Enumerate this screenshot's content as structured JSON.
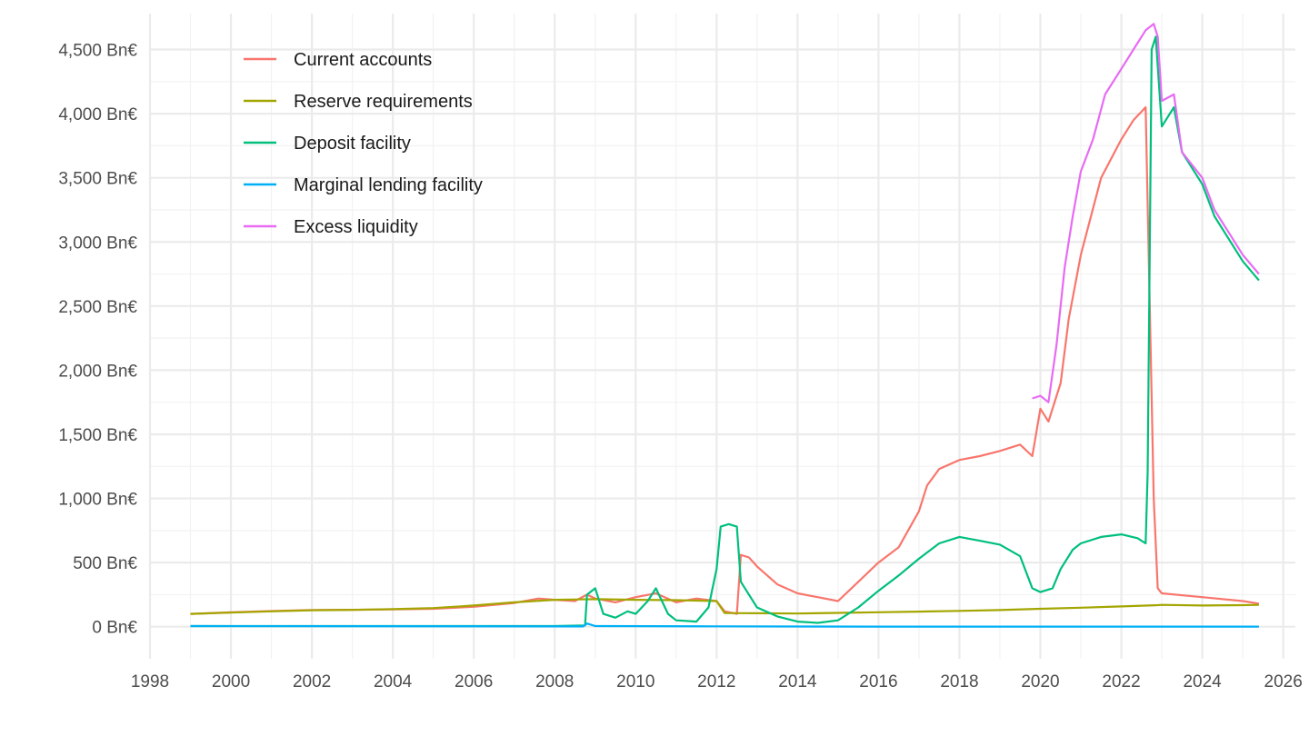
{
  "chart_data": {
    "type": "line",
    "title": "",
    "xlabel": "",
    "ylabel": "",
    "x_unit": "year",
    "y_unit": "Bn€",
    "xlim": [
      1998.0,
      2026.3
    ],
    "ylim": [
      -250,
      4780
    ],
    "x_ticks": [
      1998,
      2000,
      2002,
      2004,
      2006,
      2008,
      2010,
      2012,
      2014,
      2016,
      2018,
      2020,
      2022,
      2024,
      2026
    ],
    "x_tick_labels": [
      "1998",
      "2000",
      "2002",
      "2004",
      "2006",
      "2008",
      "2010",
      "2012",
      "2014",
      "2016",
      "2018",
      "2020",
      "2022",
      "2024",
      "2026"
    ],
    "y_ticks": [
      0,
      500,
      1000,
      1500,
      2000,
      2500,
      3000,
      3500,
      4000,
      4500
    ],
    "y_tick_labels": [
      "0 Bn€",
      "500 Bn€",
      "1,000 Bn€",
      "1,500 Bn€",
      "2,000 Bn€",
      "2,500 Bn€",
      "3,000 Bn€",
      "3,500 Bn€",
      "4,000 Bn€",
      "4,500 Bn€"
    ],
    "grid": true,
    "legend_position": "top-left",
    "series": [
      {
        "name": "Current accounts",
        "color": "#F8766D",
        "points": [
          [
            1999.0,
            100
          ],
          [
            2000.0,
            112
          ],
          [
            2001.0,
            122
          ],
          [
            2002.0,
            130
          ],
          [
            2003.0,
            132
          ],
          [
            2004.0,
            135
          ],
          [
            2005.0,
            140
          ],
          [
            2006.0,
            155
          ],
          [
            2007.0,
            185
          ],
          [
            2007.6,
            220
          ],
          [
            2008.0,
            210
          ],
          [
            2008.5,
            200
          ],
          [
            2008.8,
            250
          ],
          [
            2009.0,
            220
          ],
          [
            2009.5,
            190
          ],
          [
            2010.0,
            230
          ],
          [
            2010.5,
            260
          ],
          [
            2011.0,
            190
          ],
          [
            2011.5,
            220
          ],
          [
            2012.0,
            200
          ],
          [
            2012.2,
            120
          ],
          [
            2012.5,
            100
          ],
          [
            2012.6,
            560
          ],
          [
            2012.8,
            540
          ],
          [
            2013.0,
            470
          ],
          [
            2013.5,
            330
          ],
          [
            2014.0,
            260
          ],
          [
            2014.5,
            230
          ],
          [
            2015.0,
            200
          ],
          [
            2015.5,
            350
          ],
          [
            2016.0,
            500
          ],
          [
            2016.5,
            620
          ],
          [
            2017.0,
            900
          ],
          [
            2017.2,
            1100
          ],
          [
            2017.5,
            1230
          ],
          [
            2018.0,
            1300
          ],
          [
            2018.5,
            1330
          ],
          [
            2019.0,
            1370
          ],
          [
            2019.5,
            1420
          ],
          [
            2019.8,
            1330
          ],
          [
            2020.0,
            1700
          ],
          [
            2020.2,
            1600
          ],
          [
            2020.5,
            1900
          ],
          [
            2020.7,
            2400
          ],
          [
            2021.0,
            2900
          ],
          [
            2021.5,
            3500
          ],
          [
            2022.0,
            3800
          ],
          [
            2022.3,
            3950
          ],
          [
            2022.6,
            4050
          ],
          [
            2022.8,
            1000
          ],
          [
            2022.9,
            300
          ],
          [
            2023.0,
            260
          ],
          [
            2024.0,
            230
          ],
          [
            2025.0,
            200
          ],
          [
            2025.4,
            180
          ]
        ]
      },
      {
        "name": "Reserve requirements",
        "color": "#A3A500",
        "points": [
          [
            1999.0,
            100
          ],
          [
            2000.0,
            110
          ],
          [
            2001.0,
            120
          ],
          [
            2002.0,
            128
          ],
          [
            2003.0,
            131
          ],
          [
            2004.0,
            137
          ],
          [
            2005.0,
            145
          ],
          [
            2006.0,
            165
          ],
          [
            2007.0,
            190
          ],
          [
            2008.0,
            210
          ],
          [
            2009.0,
            215
          ],
          [
            2010.0,
            210
          ],
          [
            2011.0,
            207
          ],
          [
            2012.0,
            200
          ],
          [
            2012.2,
            106
          ],
          [
            2013.0,
            105
          ],
          [
            2014.0,
            103
          ],
          [
            2015.0,
            108
          ],
          [
            2016.0,
            113
          ],
          [
            2017.0,
            118
          ],
          [
            2018.0,
            123
          ],
          [
            2019.0,
            130
          ],
          [
            2020.0,
            140
          ],
          [
            2021.0,
            148
          ],
          [
            2022.0,
            158
          ],
          [
            2022.9,
            168
          ],
          [
            2023.0,
            170
          ],
          [
            2024.0,
            165
          ],
          [
            2025.0,
            168
          ],
          [
            2025.4,
            170
          ]
        ]
      },
      {
        "name": "Deposit facility",
        "color": "#00BF7D",
        "points": [
          [
            1999.0,
            5
          ],
          [
            2008.0,
            5
          ],
          [
            2008.75,
            10
          ],
          [
            2008.8,
            250
          ],
          [
            2009.0,
            300
          ],
          [
            2009.2,
            100
          ],
          [
            2009.5,
            70
          ],
          [
            2009.8,
            120
          ],
          [
            2010.0,
            100
          ],
          [
            2010.3,
            200
          ],
          [
            2010.5,
            300
          ],
          [
            2010.8,
            100
          ],
          [
            2011.0,
            50
          ],
          [
            2011.5,
            40
          ],
          [
            2011.8,
            150
          ],
          [
            2012.0,
            450
          ],
          [
            2012.1,
            780
          ],
          [
            2012.3,
            800
          ],
          [
            2012.5,
            780
          ],
          [
            2012.6,
            350
          ],
          [
            2012.8,
            250
          ],
          [
            2013.0,
            150
          ],
          [
            2013.5,
            80
          ],
          [
            2014.0,
            40
          ],
          [
            2014.5,
            30
          ],
          [
            2015.0,
            50
          ],
          [
            2015.5,
            150
          ],
          [
            2016.0,
            280
          ],
          [
            2016.5,
            400
          ],
          [
            2017.0,
            530
          ],
          [
            2017.5,
            650
          ],
          [
            2018.0,
            700
          ],
          [
            2018.5,
            670
          ],
          [
            2019.0,
            640
          ],
          [
            2019.5,
            550
          ],
          [
            2019.8,
            300
          ],
          [
            2020.0,
            270
          ],
          [
            2020.3,
            300
          ],
          [
            2020.5,
            450
          ],
          [
            2020.8,
            600
          ],
          [
            2021.0,
            650
          ],
          [
            2021.5,
            700
          ],
          [
            2022.0,
            720
          ],
          [
            2022.4,
            690
          ],
          [
            2022.6,
            650
          ],
          [
            2022.65,
            1200
          ],
          [
            2022.75,
            4500
          ],
          [
            2022.85,
            4600
          ],
          [
            2023.0,
            3900
          ],
          [
            2023.3,
            4050
          ],
          [
            2023.5,
            3700
          ],
          [
            2024.0,
            3450
          ],
          [
            2024.3,
            3200
          ],
          [
            2024.7,
            3000
          ],
          [
            2025.0,
            2850
          ],
          [
            2025.4,
            2700
          ]
        ]
      },
      {
        "name": "Marginal lending facility",
        "color": "#00B0F6",
        "points": [
          [
            1999.0,
            5
          ],
          [
            2008.7,
            2
          ],
          [
            2008.8,
            25
          ],
          [
            2009.0,
            5
          ],
          [
            2012.0,
            3
          ],
          [
            2016.0,
            1
          ],
          [
            2022.0,
            1
          ],
          [
            2025.4,
            1
          ]
        ]
      },
      {
        "name": "Excess liquidity",
        "color": "#E76BF3",
        "points": [
          [
            2019.8,
            1780
          ],
          [
            2020.0,
            1800
          ],
          [
            2020.2,
            1750
          ],
          [
            2020.4,
            2200
          ],
          [
            2020.6,
            2800
          ],
          [
            2020.8,
            3200
          ],
          [
            2021.0,
            3550
          ],
          [
            2021.3,
            3800
          ],
          [
            2021.6,
            4150
          ],
          [
            2022.0,
            4350
          ],
          [
            2022.3,
            4500
          ],
          [
            2022.6,
            4650
          ],
          [
            2022.8,
            4700
          ],
          [
            2022.9,
            4600
          ],
          [
            2023.0,
            4100
          ],
          [
            2023.3,
            4150
          ],
          [
            2023.5,
            3700
          ],
          [
            2024.0,
            3500
          ],
          [
            2024.3,
            3250
          ],
          [
            2024.7,
            3050
          ],
          [
            2025.0,
            2900
          ],
          [
            2025.4,
            2750
          ]
        ]
      }
    ]
  }
}
